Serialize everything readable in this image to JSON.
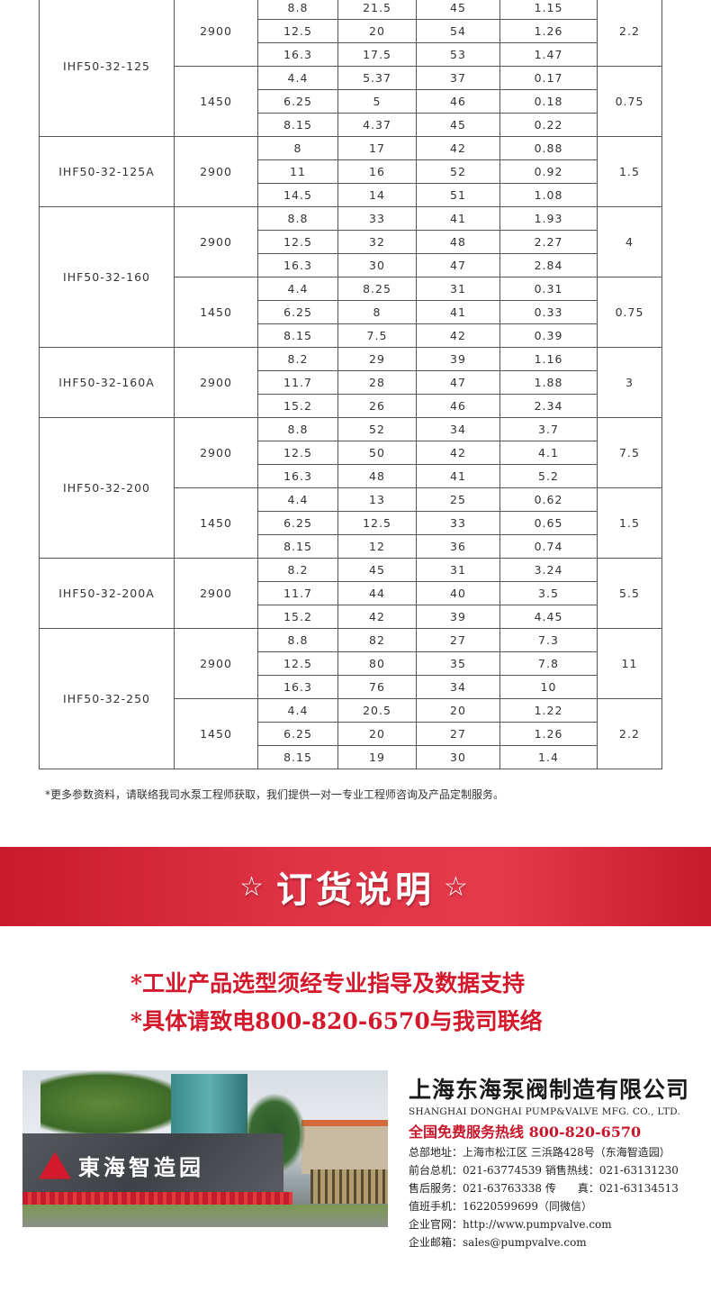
{
  "spec_table": [
    {
      "model": "IHF50-32-125",
      "speeds": [
        {
          "rpm": "2900",
          "power": "2.2",
          "rows": [
            [
              "8.8",
              "21.5",
              "45",
              "1.15"
            ],
            [
              "12.5",
              "20",
              "54",
              "1.26"
            ],
            [
              "16.3",
              "17.5",
              "53",
              "1.47"
            ]
          ]
        },
        {
          "rpm": "1450",
          "power": "0.75",
          "rows": [
            [
              "4.4",
              "5.37",
              "37",
              "0.17"
            ],
            [
              "6.25",
              "5",
              "46",
              "0.18"
            ],
            [
              "8.15",
              "4.37",
              "45",
              "0.22"
            ]
          ]
        }
      ]
    },
    {
      "model": "IHF50-32-125A",
      "speeds": [
        {
          "rpm": "2900",
          "power": "1.5",
          "rows": [
            [
              "8",
              "17",
              "42",
              "0.88"
            ],
            [
              "11",
              "16",
              "52",
              "0.92"
            ],
            [
              "14.5",
              "14",
              "51",
              "1.08"
            ]
          ]
        }
      ]
    },
    {
      "model": "IHF50-32-160",
      "speeds": [
        {
          "rpm": "2900",
          "power": "4",
          "rows": [
            [
              "8.8",
              "33",
              "41",
              "1.93"
            ],
            [
              "12.5",
              "32",
              "48",
              "2.27"
            ],
            [
              "16.3",
              "30",
              "47",
              "2.84"
            ]
          ]
        },
        {
          "rpm": "1450",
          "power": "0.75",
          "rows": [
            [
              "4.4",
              "8.25",
              "31",
              "0.31"
            ],
            [
              "6.25",
              "8",
              "41",
              "0.33"
            ],
            [
              "8.15",
              "7.5",
              "42",
              "0.39"
            ]
          ]
        }
      ]
    },
    {
      "model": "IHF50-32-160A",
      "speeds": [
        {
          "rpm": "2900",
          "power": "3",
          "rows": [
            [
              "8.2",
              "29",
              "39",
              "1.16"
            ],
            [
              "11.7",
              "28",
              "47",
              "1.88"
            ],
            [
              "15.2",
              "26",
              "46",
              "2.34"
            ]
          ]
        }
      ]
    },
    {
      "model": "IHF50-32-200",
      "speeds": [
        {
          "rpm": "2900",
          "power": "7.5",
          "rows": [
            [
              "8.8",
              "52",
              "34",
              "3.7"
            ],
            [
              "12.5",
              "50",
              "42",
              "4.1"
            ],
            [
              "16.3",
              "48",
              "41",
              "5.2"
            ]
          ]
        },
        {
          "rpm": "1450",
          "power": "1.5",
          "rows": [
            [
              "4.4",
              "13",
              "25",
              "0.62"
            ],
            [
              "6.25",
              "12.5",
              "33",
              "0.65"
            ],
            [
              "8.15",
              "12",
              "36",
              "0.74"
            ]
          ]
        }
      ]
    },
    {
      "model": "IHF50-32-200A",
      "speeds": [
        {
          "rpm": "2900",
          "power": "5.5",
          "rows": [
            [
              "8.2",
              "45",
              "31",
              "3.24"
            ],
            [
              "11.7",
              "44",
              "40",
              "3.5"
            ],
            [
              "15.2",
              "42",
              "39",
              "4.45"
            ]
          ]
        }
      ]
    },
    {
      "model": "IHF50-32-250",
      "speeds": [
        {
          "rpm": "2900",
          "power": "11",
          "rows": [
            [
              "8.8",
              "82",
              "27",
              "7.3"
            ],
            [
              "12.5",
              "80",
              "35",
              "7.8"
            ],
            [
              "16.3",
              "76",
              "34",
              "10"
            ]
          ]
        },
        {
          "rpm": "1450",
          "power": "2.2",
          "rows": [
            [
              "4.4",
              "20.5",
              "20",
              "1.22"
            ],
            [
              "6.25",
              "20",
              "27",
              "1.26"
            ],
            [
              "8.15",
              "19",
              "30",
              "1.4"
            ]
          ]
        }
      ]
    }
  ],
  "note": "*更多参数资料，请联络我司水泵工程师获取，我们提供一对一专业工程师咨询及产品定制服务。",
  "banner": {
    "star": "☆",
    "title": "订货说明"
  },
  "order_lines": [
    "*工业产品选型须经专业指导及数据支持",
    "*具体请致电800-820-6570与我司联络"
  ],
  "photo": {
    "logo_text": "東海智造园"
  },
  "company": {
    "name_cn": "上海东海泵阀制造有限公司",
    "name_en": "SHANGHAI DONGHAI PUMP&VALVE MFG. CO., LTD.",
    "hotline": "全国免费服务热线  800-820-6570",
    "lines": [
      "总部地址：上海市松江区 三浜路428号（东海智造园）",
      "前台总机：021-63774539   销售热线：021-63131230",
      "售后服务：021-63763338   传　　真：021-63134513",
      "值班手机：16220599699（同微信）",
      "企业官网：http://www.pumpvalve.com",
      "企业邮箱：sales@pumpvalve.com"
    ]
  },
  "colors": {
    "accent": "#d3192b",
    "banner": "#e13547"
  }
}
